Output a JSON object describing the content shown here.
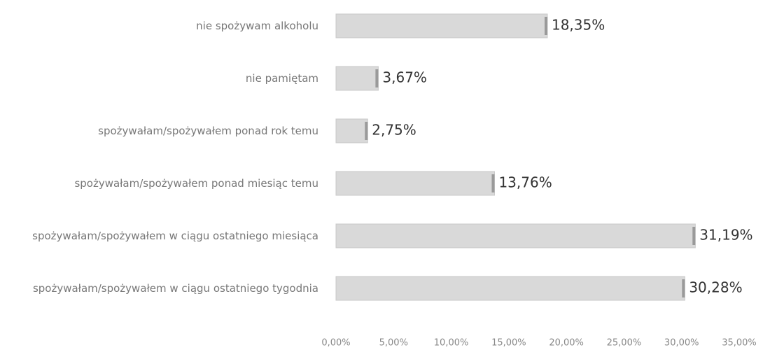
{
  "chart_data": {
    "type": "hbar",
    "categories": [
      "nie spożywam alkoholu",
      "nie pamiętam",
      "spożywałam/spożywałem ponad rok temu",
      "spożywałam/spożywałem ponad miesiąc temu",
      "spożywałam/spożywałem w ciągu ostatniego miesiąca",
      "spożywałam/spożywałem w ciągu ostatniego tygodnia"
    ],
    "values": [
      18.35,
      3.67,
      2.75,
      13.76,
      31.19,
      30.28
    ],
    "value_labels": [
      "18,35%",
      "3,67%",
      "2,75%",
      "13,76%",
      "31,19%",
      "30,28%"
    ],
    "color": "#d9d9d9",
    "xlim": [
      0,
      35
    ],
    "xticks": [
      {
        "value": 0,
        "label": "0,00%"
      },
      {
        "value": 5,
        "label": "5,00%"
      },
      {
        "value": 10,
        "label": "10,00%"
      },
      {
        "value": 15,
        "label": "15,00%"
      },
      {
        "value": 20,
        "label": "20,00%"
      },
      {
        "value": 25,
        "label": "25,00%"
      },
      {
        "value": 30,
        "label": "30,00%"
      },
      {
        "value": 35,
        "label": "35,00%"
      }
    ],
    "grid": false
  }
}
